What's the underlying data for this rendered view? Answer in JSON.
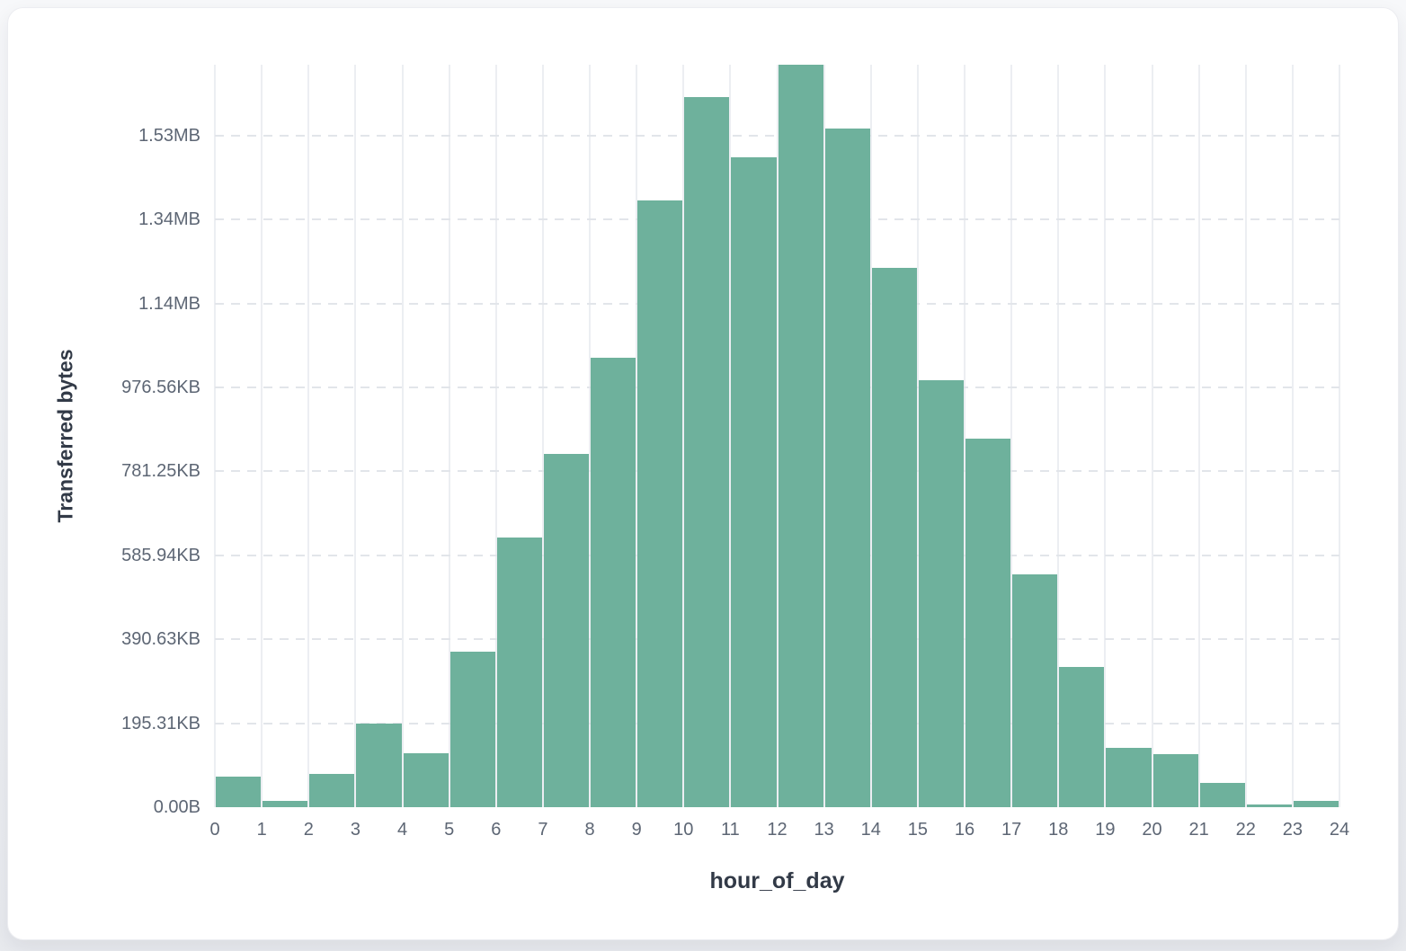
{
  "chart_data": {
    "type": "bar",
    "title": "",
    "xlabel": "hour_of_day",
    "ylabel": "Transferred bytes",
    "bar_color": "#6EB19C",
    "legend": "none",
    "grid": {
      "vertical": "solid",
      "horizontal": "dashed"
    },
    "xlim": [
      0,
      24
    ],
    "ylim_bytes": [
      0,
      1768500
    ],
    "x_ticks": [
      0,
      1,
      2,
      3,
      4,
      5,
      6,
      7,
      8,
      9,
      10,
      11,
      12,
      13,
      14,
      15,
      16,
      17,
      18,
      19,
      20,
      21,
      22,
      23,
      24
    ],
    "y_ticks": [
      {
        "label": "0.00B",
        "bytes": 0
      },
      {
        "label": "195.31KB",
        "bytes": 200000
      },
      {
        "label": "390.63KB",
        "bytes": 400000
      },
      {
        "label": "585.94KB",
        "bytes": 600000
      },
      {
        "label": "781.25KB",
        "bytes": 800000
      },
      {
        "label": "976.56KB",
        "bytes": 1000000
      },
      {
        "label": "1.14MB",
        "bytes": 1200000
      },
      {
        "label": "1.34MB",
        "bytes": 1400000
      },
      {
        "label": "1.53MB",
        "bytes": 1600000
      }
    ],
    "series": [
      {
        "name": "Transferred bytes",
        "bin_start_hours": [
          0,
          1,
          2,
          3,
          4,
          5,
          6,
          7,
          8,
          9,
          10,
          11,
          12,
          13,
          14,
          15,
          16,
          17,
          18,
          19,
          20,
          21,
          22,
          23
        ],
        "values_bytes": [
          73000,
          16000,
          79000,
          200000,
          128000,
          371000,
          643000,
          841000,
          1070000,
          1446000,
          1692000,
          1549000,
          1768500,
          1617000,
          1284000,
          1018000,
          878000,
          554000,
          335000,
          142000,
          127000,
          58000,
          5400,
          14000
        ]
      }
    ]
  }
}
